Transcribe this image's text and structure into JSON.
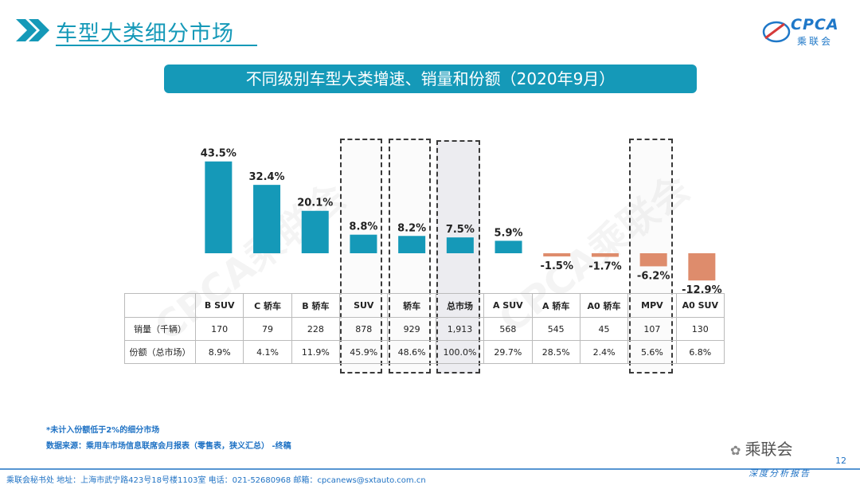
{
  "header": {
    "title": "车型大类细分市场"
  },
  "logo": {
    "brand": "CPCA",
    "sub": "乘联会"
  },
  "banner": {
    "title": "不同级别车型大类增速、销量和份额（2020年9月）"
  },
  "watermark": "CPCA乘联会",
  "colors": {
    "positive": "#1599b8",
    "negative": "#de8c6c",
    "accent": "#1599b8"
  },
  "chart_data": {
    "type": "bar",
    "categories": [
      "B SUV",
      "C 轿车",
      "B 轿车",
      "SUV",
      "轿车",
      "总市场",
      "A SUV",
      "A 轿车",
      "A0 轿车",
      "MPV",
      "A0 SUV"
    ],
    "values": [
      43.5,
      32.4,
      20.1,
      8.8,
      8.2,
      7.5,
      5.9,
      -1.5,
      -1.7,
      -6.2,
      -12.9
    ],
    "value_labels": [
      "43.5%",
      "32.4%",
      "20.1%",
      "8.8%",
      "8.2%",
      "7.5%",
      "5.9%",
      "-1.5%",
      "-1.7%",
      "-6.2%",
      "-12.9%"
    ],
    "unit": "%",
    "highlighted": [
      "SUV",
      "轿车",
      "总市场",
      "MPV"
    ],
    "table": {
      "rows": [
        {
          "label": "销量（千辆）",
          "values": [
            "170",
            "79",
            "228",
            "878",
            "929",
            "1,913",
            "568",
            "545",
            "45",
            "107",
            "130"
          ]
        },
        {
          "label": "份额（总市场）",
          "values": [
            "8.9%",
            "4.1%",
            "11.9%",
            "45.9%",
            "48.6%",
            "100.0%",
            "29.7%",
            "28.5%",
            "2.4%",
            "5.6%",
            "6.8%"
          ]
        }
      ]
    }
  },
  "notes": {
    "line1": "*未计入份额低于2%的细分市场",
    "line2": "数据来源：乘用车市场信息联席会月报表（零售表，狭义汇总）  -终稿"
  },
  "footer": {
    "text": "乘联会秘书处   地址：上海市武宁路423号18号楼1103室   电话：021-52680968    邮箱：cpcanews@sxtauto.com.cn",
    "slogan": "深度分析报告",
    "page": "12",
    "wechat": "乘联会"
  }
}
